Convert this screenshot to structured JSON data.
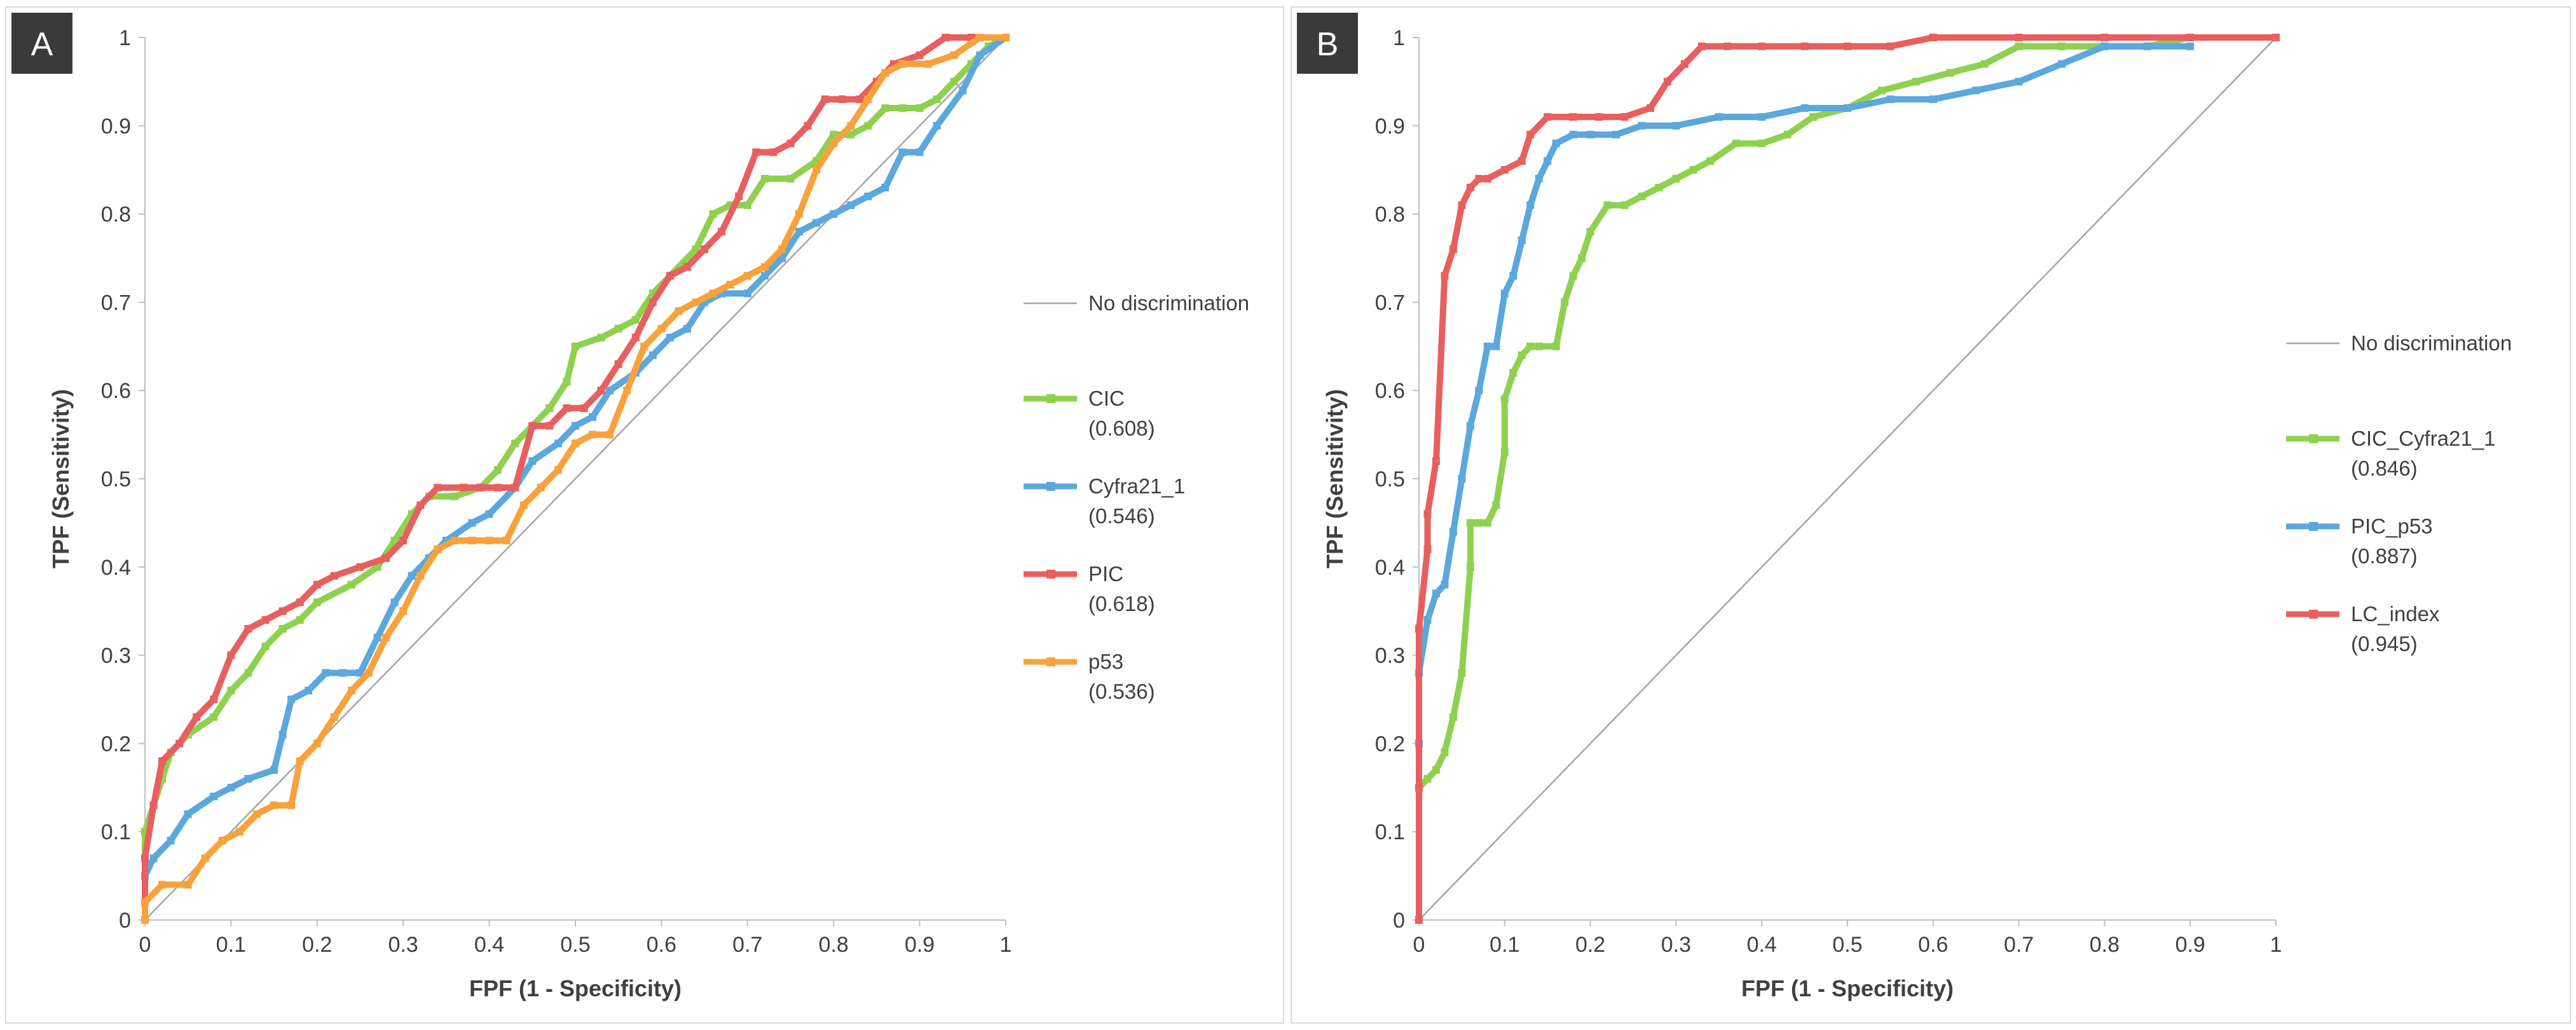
{
  "chart_data": [
    {
      "type": "line",
      "panel_label": "A",
      "xlabel": "FPF (1 - Specificity)",
      "ylabel": "TPF (Sensitivity)",
      "xlim": [
        0,
        1
      ],
      "ylim": [
        0,
        1
      ],
      "xticks": [
        "0",
        "0.1",
        "0.2",
        "0.3",
        "0.4",
        "0.5",
        "0.6",
        "0.7",
        "0.8",
        "0.9",
        "1"
      ],
      "yticks": [
        "0",
        "0.1",
        "0.2",
        "0.3",
        "0.4",
        "0.5",
        "0.6",
        "0.7",
        "0.8",
        "0.9",
        "1"
      ],
      "legend_position": "right",
      "series": [
        {
          "name": "No discrimination",
          "auc": "",
          "color": "#a6a6a6",
          "marker": false,
          "x": [
            0,
            1
          ],
          "y": [
            0,
            1
          ]
        },
        {
          "name": "CIC",
          "auc": "(0.608)",
          "color": "#8ed14f",
          "marker": true,
          "x": [
            0,
            0.0,
            0.01,
            0.02,
            0.03,
            0.05,
            0.08,
            0.1,
            0.12,
            0.14,
            0.16,
            0.18,
            0.2,
            0.24,
            0.27,
            0.29,
            0.31,
            0.33,
            0.36,
            0.39,
            0.41,
            0.43,
            0.45,
            0.47,
            0.49,
            0.5,
            0.53,
            0.55,
            0.57,
            0.59,
            0.61,
            0.64,
            0.66,
            0.68,
            0.7,
            0.72,
            0.75,
            0.78,
            0.8,
            0.82,
            0.84,
            0.86,
            0.88,
            0.9,
            0.92,
            0.94,
            0.96,
            0.98,
            1.0
          ],
          "y": [
            0,
            0.1,
            0.13,
            0.16,
            0.19,
            0.21,
            0.23,
            0.26,
            0.28,
            0.31,
            0.33,
            0.34,
            0.36,
            0.38,
            0.4,
            0.43,
            0.46,
            0.48,
            0.48,
            0.49,
            0.51,
            0.54,
            0.56,
            0.58,
            0.61,
            0.65,
            0.66,
            0.67,
            0.68,
            0.71,
            0.73,
            0.76,
            0.8,
            0.81,
            0.81,
            0.84,
            0.84,
            0.86,
            0.89,
            0.89,
            0.9,
            0.92,
            0.92,
            0.92,
            0.93,
            0.95,
            0.97,
            0.99,
            1.0
          ]
        },
        {
          "name": "Cyfra21_1",
          "auc": "(0.546)",
          "color": "#5aa8dc",
          "marker": true,
          "x": [
            0,
            0.0,
            0.01,
            0.03,
            0.05,
            0.08,
            0.1,
            0.12,
            0.15,
            0.16,
            0.17,
            0.19,
            0.21,
            0.23,
            0.25,
            0.27,
            0.29,
            0.31,
            0.33,
            0.35,
            0.38,
            0.4,
            0.43,
            0.45,
            0.48,
            0.5,
            0.52,
            0.54,
            0.57,
            0.59,
            0.61,
            0.63,
            0.65,
            0.67,
            0.7,
            0.72,
            0.74,
            0.76,
            0.78,
            0.8,
            0.82,
            0.84,
            0.86,
            0.88,
            0.9,
            0.92,
            0.95,
            0.97,
            1.0
          ],
          "y": [
            0,
            0.05,
            0.07,
            0.09,
            0.12,
            0.14,
            0.15,
            0.16,
            0.17,
            0.21,
            0.25,
            0.26,
            0.28,
            0.28,
            0.28,
            0.32,
            0.36,
            0.39,
            0.41,
            0.43,
            0.45,
            0.46,
            0.49,
            0.52,
            0.54,
            0.56,
            0.57,
            0.6,
            0.62,
            0.64,
            0.66,
            0.67,
            0.7,
            0.71,
            0.71,
            0.73,
            0.75,
            0.78,
            0.79,
            0.8,
            0.81,
            0.82,
            0.83,
            0.87,
            0.87,
            0.9,
            0.94,
            0.98,
            1.0
          ]
        },
        {
          "name": "PIC",
          "auc": "(0.618)",
          "color": "#e85f5f",
          "marker": true,
          "x": [
            0,
            0.0,
            0.01,
            0.02,
            0.04,
            0.06,
            0.08,
            0.1,
            0.12,
            0.14,
            0.16,
            0.18,
            0.2,
            0.22,
            0.25,
            0.28,
            0.3,
            0.32,
            0.34,
            0.37,
            0.39,
            0.41,
            0.43,
            0.45,
            0.47,
            0.49,
            0.51,
            0.53,
            0.55,
            0.57,
            0.59,
            0.61,
            0.63,
            0.65,
            0.67,
            0.69,
            0.71,
            0.73,
            0.75,
            0.77,
            0.79,
            0.81,
            0.83,
            0.85,
            0.87,
            0.9,
            0.93,
            0.96,
            1.0
          ],
          "y": [
            0,
            0.07,
            0.13,
            0.18,
            0.2,
            0.23,
            0.25,
            0.3,
            0.33,
            0.34,
            0.35,
            0.36,
            0.38,
            0.39,
            0.4,
            0.41,
            0.43,
            0.47,
            0.49,
            0.49,
            0.49,
            0.49,
            0.49,
            0.56,
            0.56,
            0.58,
            0.58,
            0.6,
            0.63,
            0.66,
            0.7,
            0.73,
            0.74,
            0.76,
            0.78,
            0.82,
            0.87,
            0.87,
            0.88,
            0.9,
            0.93,
            0.93,
            0.93,
            0.95,
            0.97,
            0.98,
            1.0,
            1.0,
            1.0
          ]
        },
        {
          "name": "p53",
          "auc": "(0.536)",
          "color": "#f7a23c",
          "marker": true,
          "x": [
            0,
            0.0,
            0.02,
            0.05,
            0.07,
            0.09,
            0.11,
            0.13,
            0.15,
            0.17,
            0.18,
            0.2,
            0.22,
            0.24,
            0.26,
            0.28,
            0.3,
            0.32,
            0.34,
            0.36,
            0.38,
            0.4,
            0.42,
            0.44,
            0.46,
            0.48,
            0.5,
            0.52,
            0.54,
            0.56,
            0.58,
            0.6,
            0.62,
            0.64,
            0.66,
            0.68,
            0.7,
            0.72,
            0.74,
            0.76,
            0.78,
            0.8,
            0.82,
            0.84,
            0.86,
            0.88,
            0.91,
            0.94,
            0.97,
            1.0
          ],
          "y": [
            0,
            0.02,
            0.04,
            0.04,
            0.07,
            0.09,
            0.1,
            0.12,
            0.13,
            0.13,
            0.18,
            0.2,
            0.23,
            0.26,
            0.28,
            0.32,
            0.35,
            0.39,
            0.42,
            0.43,
            0.43,
            0.43,
            0.43,
            0.47,
            0.49,
            0.51,
            0.54,
            0.55,
            0.55,
            0.6,
            0.65,
            0.67,
            0.69,
            0.7,
            0.71,
            0.72,
            0.73,
            0.74,
            0.76,
            0.8,
            0.85,
            0.88,
            0.9,
            0.93,
            0.96,
            0.97,
            0.97,
            0.98,
            1.0,
            1.0
          ]
        }
      ]
    },
    {
      "type": "line",
      "panel_label": "B",
      "xlabel": "FPF (1 - Specificity)",
      "ylabel": "TPF (Sensitivity)",
      "xlim": [
        0,
        1
      ],
      "ylim": [
        0,
        1
      ],
      "xticks": [
        "0",
        "0.1",
        "0.2",
        "0.3",
        "0.4",
        "0.5",
        "0.6",
        "0.7",
        "0.8",
        "0.9",
        "1"
      ],
      "yticks": [
        "0",
        "0.1",
        "0.2",
        "0.3",
        "0.4",
        "0.5",
        "0.6",
        "0.7",
        "0.8",
        "0.9",
        "1"
      ],
      "legend_position": "right",
      "series": [
        {
          "name": "No discrimination",
          "auc": "",
          "color": "#a6a6a6",
          "marker": false,
          "x": [
            0,
            1
          ],
          "y": [
            0,
            1
          ]
        },
        {
          "name": "CIC_Cyfra21_1",
          "auc": "(0.846)",
          "color": "#8ed14f",
          "marker": true,
          "x": [
            0,
            0.0,
            0.01,
            0.02,
            0.03,
            0.04,
            0.05,
            0.06,
            0.06,
            0.07,
            0.08,
            0.09,
            0.1,
            0.1,
            0.11,
            0.12,
            0.13,
            0.14,
            0.16,
            0.17,
            0.18,
            0.19,
            0.2,
            0.22,
            0.24,
            0.26,
            0.28,
            0.3,
            0.32,
            0.34,
            0.37,
            0.4,
            0.43,
            0.46,
            0.5,
            0.54,
            0.58,
            0.62,
            0.66,
            0.7,
            0.75,
            0.8,
            0.85,
            0.9,
            1.0
          ],
          "y": [
            0,
            0.15,
            0.16,
            0.17,
            0.19,
            0.23,
            0.28,
            0.4,
            0.45,
            0.45,
            0.45,
            0.47,
            0.53,
            0.59,
            0.62,
            0.64,
            0.65,
            0.65,
            0.65,
            0.7,
            0.73,
            0.75,
            0.78,
            0.81,
            0.81,
            0.82,
            0.83,
            0.84,
            0.85,
            0.86,
            0.88,
            0.88,
            0.89,
            0.91,
            0.92,
            0.94,
            0.95,
            0.96,
            0.97,
            0.99,
            0.99,
            0.99,
            0.99,
            1.0,
            1.0
          ]
        },
        {
          "name": "PIC_p53",
          "auc": "(0.887)",
          "color": "#5aa8dc",
          "marker": true,
          "x": [
            0,
            0.0,
            0.0,
            0.01,
            0.02,
            0.03,
            0.04,
            0.05,
            0.06,
            0.07,
            0.08,
            0.09,
            0.1,
            0.11,
            0.12,
            0.13,
            0.14,
            0.15,
            0.16,
            0.18,
            0.2,
            0.23,
            0.26,
            0.3,
            0.35,
            0.4,
            0.45,
            0.5,
            0.55,
            0.6,
            0.65,
            0.7,
            0.75,
            0.8,
            0.85,
            0.9
          ],
          "y": [
            0,
            0.2,
            0.28,
            0.34,
            0.37,
            0.38,
            0.44,
            0.5,
            0.56,
            0.6,
            0.65,
            0.65,
            0.71,
            0.73,
            0.77,
            0.81,
            0.84,
            0.86,
            0.88,
            0.89,
            0.89,
            0.89,
            0.9,
            0.9,
            0.91,
            0.91,
            0.92,
            0.92,
            0.93,
            0.93,
            0.94,
            0.95,
            0.97,
            0.99,
            0.99,
            0.99
          ]
        },
        {
          "name": "LC_index",
          "auc": "(0.945)",
          "color": "#e85f5f",
          "marker": true,
          "x": [
            0,
            0.0,
            0.0,
            0.01,
            0.01,
            0.02,
            0.03,
            0.04,
            0.05,
            0.06,
            0.07,
            0.08,
            0.1,
            0.12,
            0.13,
            0.15,
            0.18,
            0.21,
            0.24,
            0.27,
            0.29,
            0.31,
            0.33,
            0.36,
            0.4,
            0.45,
            0.5,
            0.55,
            0.6,
            0.7,
            0.8,
            0.9,
            1.0
          ],
          "y": [
            0,
            0.15,
            0.33,
            0.42,
            0.46,
            0.52,
            0.73,
            0.76,
            0.81,
            0.83,
            0.84,
            0.84,
            0.85,
            0.86,
            0.89,
            0.91,
            0.91,
            0.91,
            0.91,
            0.92,
            0.95,
            0.97,
            0.99,
            0.99,
            0.99,
            0.99,
            0.99,
            0.99,
            1.0,
            1.0,
            1.0,
            1.0,
            1.0
          ]
        }
      ]
    }
  ]
}
